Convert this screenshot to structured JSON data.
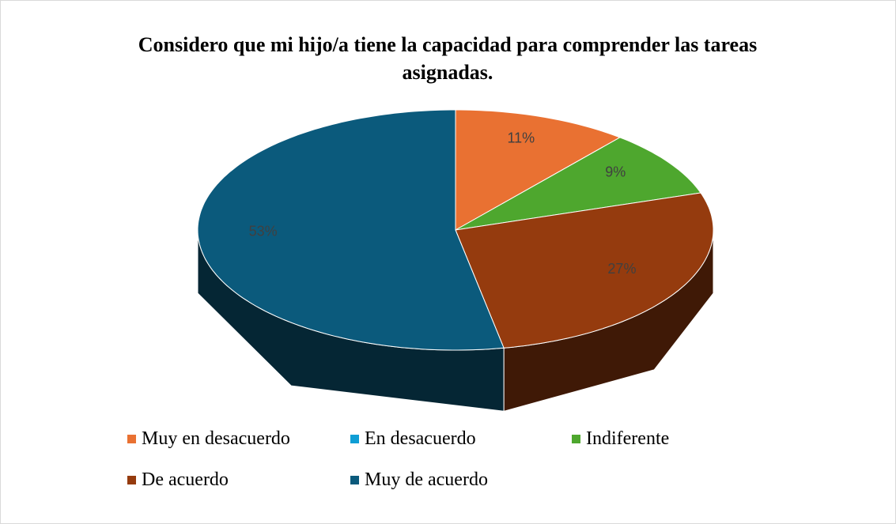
{
  "chart_data": {
    "type": "pie",
    "title": "Considero que mi hijo/a tiene la capacidad para comprender las tareas asignadas.",
    "categories": [
      "Muy en desacuerdo",
      "En desacuerdo",
      "Indiferente",
      "De acuerdo",
      "Muy de acuerdo"
    ],
    "values": [
      11,
      0,
      9,
      27,
      53
    ],
    "value_labels": [
      "11%",
      null,
      "9%",
      "27%",
      "53%"
    ],
    "colors": [
      "#e97132",
      "#0f9ed5",
      "#4ea72e",
      "#953b0e",
      "#0b5a7c"
    ],
    "legend": "bottom"
  }
}
